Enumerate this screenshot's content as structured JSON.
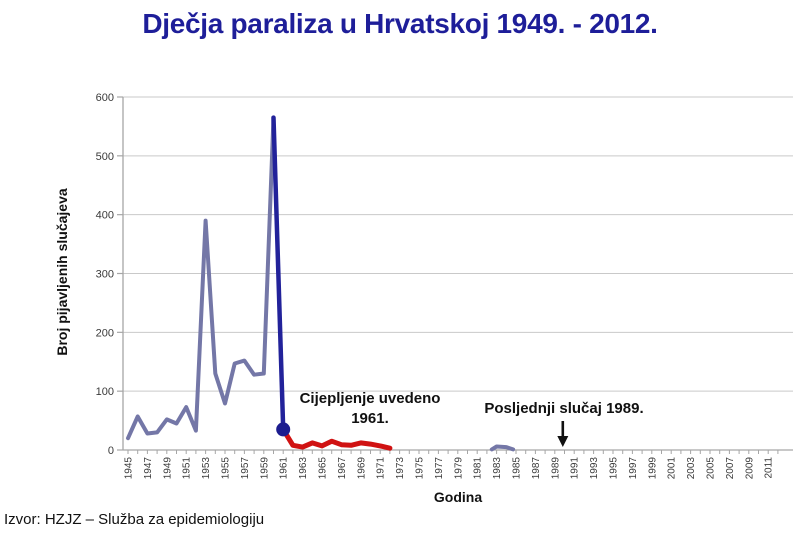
{
  "slide": {
    "title": "Dječja paraliza u Hrvatskoj 1949. - 2012.",
    "source": "Izvor: HZJZ – Služba za epidemiologiju"
  },
  "colors": {
    "title": "#1E1E99",
    "pre_vaccine_line": "#7477A7",
    "decline_line": "#22229A",
    "post_vaccine_line": "#D01212",
    "marker": "#1C1C8F",
    "grid": "#C9C9C9",
    "axis": "#A6A6A6",
    "tick_text": "#3A3A3A",
    "annotation_text": "#111111"
  },
  "chart_data": {
    "type": "line",
    "title": "Dječja paraliza u Hrvatskoj 1949. - 2012.",
    "xlabel": "Godina",
    "ylabel": "Broj pijavljenih slučajeva",
    "xlim": [
      1945,
      2012
    ],
    "ylim": [
      0,
      600
    ],
    "y_ticks": [
      0,
      100,
      200,
      300,
      400,
      500,
      600
    ],
    "x_tick_labels": [
      "1945",
      "1947",
      "1949",
      "1951",
      "1953",
      "1955",
      "1957",
      "1959",
      "1961",
      "1963",
      "1965",
      "1967",
      "1969",
      "1971",
      "1973",
      "1975",
      "1977",
      "1979",
      "1981",
      "1983",
      "1985",
      "1987",
      "1989",
      "1991",
      "1993",
      "1995",
      "1997",
      "1999",
      "2001",
      "2003",
      "2005",
      "2007",
      "2009",
      "2011"
    ],
    "grid": "horizontal",
    "legend": "none",
    "series": [
      {
        "id": "pre-vaccination-1945-1960",
        "color_key": "pre_vaccine_line",
        "width": 4,
        "x": [
          1945,
          1946,
          1947,
          1948,
          1949,
          1950,
          1951,
          1952,
          1953,
          1954,
          1955,
          1956,
          1957,
          1958,
          1959,
          1960
        ],
        "values": [
          20,
          57,
          28,
          30,
          52,
          45,
          73,
          33,
          390,
          130,
          79,
          147,
          152,
          128,
          130,
          565
        ]
      },
      {
        "id": "epidemic-decline-1960-1961",
        "color_key": "decline_line",
        "width": 4.5,
        "x": [
          1960,
          1961
        ],
        "values": [
          565,
          35
        ]
      },
      {
        "id": "post-vaccination-1961-1972",
        "color_key": "post_vaccine_line",
        "width": 5,
        "x": [
          1961,
          1962,
          1963,
          1964,
          1965,
          1966,
          1967,
          1968,
          1969,
          1970,
          1971,
          1972
        ],
        "values": [
          35,
          8,
          5,
          12,
          7,
          15,
          9,
          8,
          12,
          10,
          7,
          3
        ]
      },
      {
        "id": "outbreak-1983-84",
        "color_key": "pre_vaccine_line",
        "width": 4,
        "x": [
          1982.5,
          1983,
          1984,
          1984.7
        ],
        "values": [
          1,
          6,
          5,
          1
        ]
      }
    ],
    "marker": {
      "x": 1961,
      "y": 35
    },
    "annotations": [
      {
        "id": "vaccine-introduced",
        "line1": "Cijepljenje uvedeno",
        "line2": "1961."
      },
      {
        "id": "last-case",
        "text": "Posljednji slučaj 1989.",
        "arrow_icon": "down-arrow",
        "arrow_x": 1989
      }
    ]
  }
}
